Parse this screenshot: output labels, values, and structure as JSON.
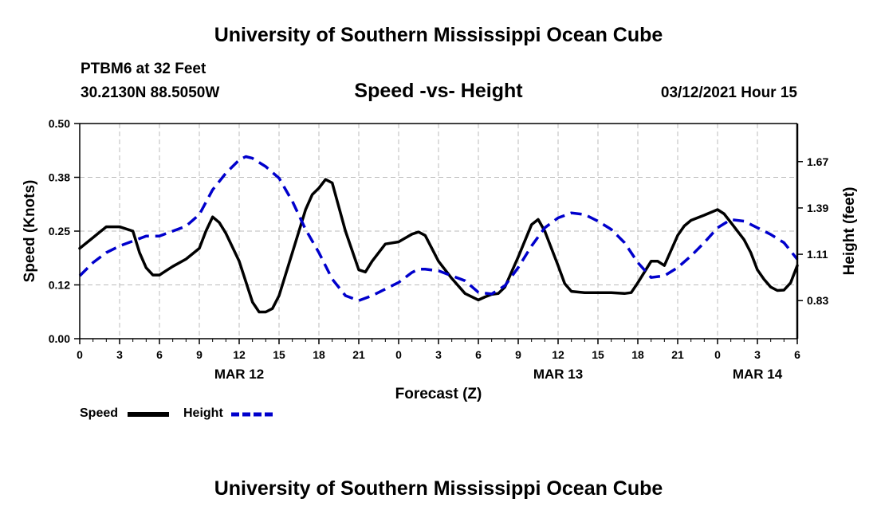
{
  "header": {
    "title": "University of Southern Mississippi Ocean Cube",
    "station": "PTBM6 at 32 Feet",
    "coordinates": "30.2130N 88.5050W",
    "chart_title": "Speed -vs- Height",
    "date": "03/12/2021 Hour 15"
  },
  "footer": {
    "title": "University of Southern Mississippi Ocean Cube"
  },
  "legend": {
    "speed_label": "Speed",
    "height_label": "Height"
  },
  "colors": {
    "speed": "#000000",
    "height": "#0000cc",
    "grid": "#bbbbbb"
  },
  "chart_data": {
    "type": "line",
    "title": "Speed -vs- Height",
    "xlabel": "Forecast (Z)",
    "ylabel": "Speed (Knots)",
    "y2label": "Height (feet)",
    "x_range": [
      0,
      54
    ],
    "x_ticks": [
      0,
      3,
      6,
      9,
      12,
      15,
      18,
      21,
      24,
      27,
      30,
      33,
      36,
      39,
      42,
      45,
      48,
      51,
      54
    ],
    "x_tick_labels": [
      "0",
      "3",
      "6",
      "9",
      "12",
      "15",
      "18",
      "21",
      "0",
      "3",
      "6",
      "9",
      "12",
      "15",
      "18",
      "21",
      "0",
      "3",
      "6"
    ],
    "date_labels": [
      {
        "text": "MAR 12",
        "x": 12
      },
      {
        "text": "MAR 13",
        "x": 36
      },
      {
        "text": "MAR 14",
        "x": 51
      }
    ],
    "y_range": [
      0,
      0.5
    ],
    "y_ticks": [
      0.0,
      0.125,
      0.25,
      0.375,
      0.5
    ],
    "y_tick_labels": [
      "0.00",
      "0.12",
      "0.25",
      "0.38",
      "0.50"
    ],
    "y2_range": [
      0.6,
      1.9
    ],
    "y2_ticks": [
      0.83,
      1.11,
      1.39,
      1.67
    ],
    "y2_tick_labels": [
      "0.83",
      "1.11",
      "1.39",
      "1.67"
    ],
    "grid": true,
    "legend_position": "bottom-left",
    "series": [
      {
        "name": "Speed",
        "axis": "left",
        "style": "solid",
        "x": [
          0,
          1,
          2,
          3,
          4,
          4.5,
          5,
          5.5,
          6,
          6.5,
          7,
          8,
          9,
          9.5,
          10,
          10.5,
          11,
          12,
          13,
          13.5,
          14,
          14.5,
          15,
          16,
          17,
          17.5,
          18,
          18.5,
          19,
          20,
          21,
          21.5,
          22,
          23,
          24,
          25,
          25.5,
          26,
          27,
          28,
          29,
          30,
          30.5,
          31,
          31.5,
          32,
          33,
          34,
          34.5,
          35,
          36,
          36.5,
          37,
          38,
          39,
          40,
          41,
          41.5,
          42,
          43,
          43.5,
          44,
          45,
          45.5,
          46,
          47,
          48,
          48.5,
          49,
          50,
          50.5,
          51,
          51.5,
          52,
          52.5,
          53,
          53.5,
          54
        ],
        "values": [
          0.21,
          0.235,
          0.26,
          0.26,
          0.25,
          0.2,
          0.165,
          0.148,
          0.148,
          0.158,
          0.168,
          0.185,
          0.21,
          0.25,
          0.283,
          0.27,
          0.245,
          0.18,
          0.085,
          0.062,
          0.062,
          0.07,
          0.1,
          0.2,
          0.3,
          0.335,
          0.35,
          0.37,
          0.362,
          0.25,
          0.16,
          0.155,
          0.18,
          0.22,
          0.225,
          0.243,
          0.248,
          0.24,
          0.18,
          0.14,
          0.105,
          0.09,
          0.097,
          0.103,
          0.105,
          0.12,
          0.19,
          0.265,
          0.277,
          0.25,
          0.17,
          0.128,
          0.11,
          0.107,
          0.107,
          0.107,
          0.105,
          0.107,
          0.13,
          0.18,
          0.18,
          0.17,
          0.24,
          0.262,
          0.275,
          0.287,
          0.3,
          0.29,
          0.27,
          0.23,
          0.2,
          0.16,
          0.138,
          0.12,
          0.112,
          0.113,
          0.13,
          0.17
        ]
      },
      {
        "name": "Height",
        "axis": "right",
        "style": "dashed",
        "x": [
          0,
          1,
          2,
          3,
          4,
          5,
          6,
          7,
          8,
          9,
          10,
          11,
          12,
          12.5,
          13,
          14,
          15,
          16,
          17,
          18,
          19,
          20,
          21,
          22,
          23,
          24,
          25,
          25.5,
          26,
          27,
          28,
          29,
          30,
          31,
          32,
          33,
          34,
          35,
          36,
          37,
          38,
          39,
          40,
          41,
          42,
          43,
          44,
          45,
          46,
          47,
          48,
          49,
          50,
          51,
          52,
          53,
          54
        ],
        "values": [
          0.98,
          1.06,
          1.12,
          1.16,
          1.19,
          1.22,
          1.22,
          1.25,
          1.28,
          1.35,
          1.5,
          1.6,
          1.68,
          1.7,
          1.69,
          1.64,
          1.57,
          1.43,
          1.26,
          1.12,
          0.96,
          0.86,
          0.83,
          0.86,
          0.9,
          0.94,
          1.0,
          1.02,
          1.02,
          1.01,
          0.98,
          0.95,
          0.88,
          0.87,
          0.92,
          1.03,
          1.16,
          1.27,
          1.33,
          1.36,
          1.35,
          1.31,
          1.26,
          1.18,
          1.06,
          0.97,
          0.98,
          1.03,
          1.1,
          1.18,
          1.27,
          1.32,
          1.31,
          1.27,
          1.23,
          1.18,
          1.08
        ]
      }
    ]
  }
}
